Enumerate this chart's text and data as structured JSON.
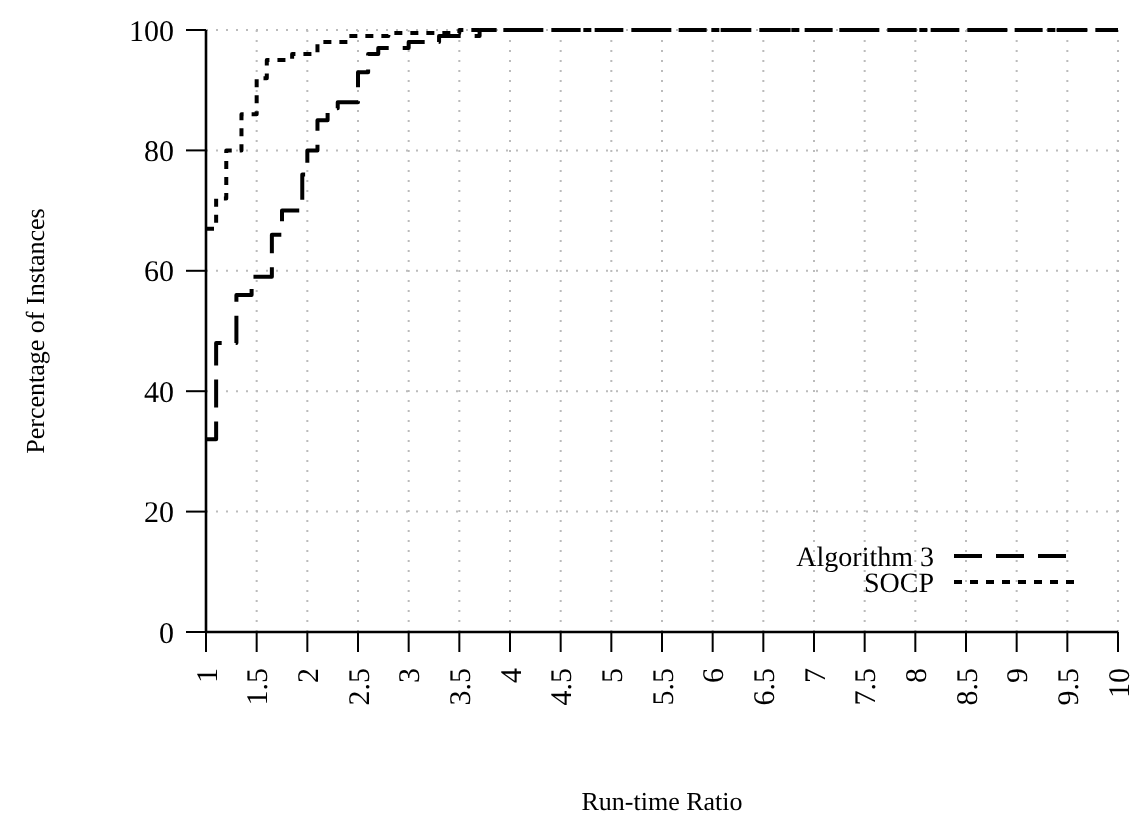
{
  "chart_data": {
    "type": "step",
    "xlabel": "Run-time Ratio",
    "ylabel": "Percentage of Instances",
    "xlim": [
      1,
      10
    ],
    "xticks": [
      1,
      1.5,
      2,
      2.5,
      3,
      3.5,
      4,
      4.5,
      5,
      5.5,
      6,
      6.5,
      7,
      7.5,
      8,
      8.5,
      9,
      9.5,
      10
    ],
    "ylim": [
      0,
      100
    ],
    "yticks": [
      0,
      20,
      40,
      60,
      80,
      100
    ],
    "grid": true,
    "legend": "bottom right",
    "series": [
      {
        "name": "Algorithm 3",
        "color": "#000000",
        "line_style": "dashed",
        "x": [
          1,
          1.1,
          1.3,
          1.45,
          1.65,
          1.75,
          1.95,
          2.0,
          2.1,
          2.2,
          2.3,
          2.5,
          2.6,
          2.7,
          3.0,
          3.3,
          3.7,
          10
        ],
        "values": [
          32,
          48,
          56,
          59,
          66,
          70,
          76,
          80,
          85,
          87,
          88,
          93,
          96,
          97,
          98,
          99,
          100,
          100
        ]
      },
      {
        "name": "SOCP",
        "color": "#000000",
        "line_style": "dotted",
        "x": [
          1,
          1.1,
          1.2,
          1.35,
          1.5,
          1.6,
          1.85,
          2.1,
          2.4,
          2.8,
          3.5,
          10
        ],
        "values": [
          67,
          72,
          80,
          86,
          92,
          95,
          96,
          98,
          99,
          99.5,
          100,
          100
        ]
      }
    ]
  }
}
